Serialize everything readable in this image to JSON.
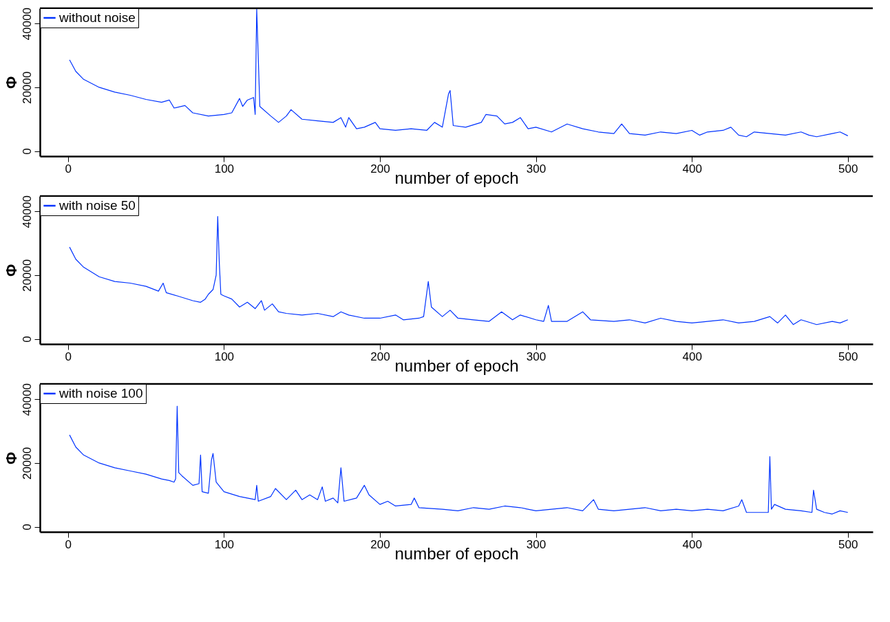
{
  "chart_data": [
    {
      "type": "line",
      "xlabel": "number of epoch",
      "ylabel": "Φ",
      "xlim": [
        -18,
        516
      ],
      "ylim": [
        -1600,
        44800
      ],
      "xticks": [
        0,
        100,
        200,
        300,
        400,
        500
      ],
      "yticks": [
        0,
        20000,
        40000
      ],
      "legend": "top left",
      "grid": false,
      "marker": "none",
      "line_style": "solid",
      "series": [
        {
          "name": "without noise",
          "color": "#0033ff",
          "x": [
            1,
            5,
            10,
            20,
            30,
            40,
            50,
            60,
            65,
            68,
            75,
            80,
            90,
            100,
            105,
            110,
            112,
            115,
            119,
            120,
            121,
            123,
            130,
            135,
            140,
            143,
            150,
            160,
            170,
            175,
            178,
            180,
            185,
            190,
            197,
            200,
            210,
            220,
            230,
            235,
            240,
            244,
            245,
            247,
            255,
            265,
            268,
            275,
            280,
            285,
            290,
            295,
            300,
            310,
            320,
            330,
            340,
            350,
            355,
            360,
            370,
            380,
            390,
            400,
            405,
            410,
            420,
            425,
            430,
            435,
            440,
            450,
            460,
            470,
            475,
            480,
            490,
            495,
            500
          ],
          "values": [
            28600,
            25000,
            22500,
            20000,
            18500,
            17500,
            16200,
            15300,
            16000,
            13500,
            14300,
            12000,
            11000,
            11500,
            12000,
            16500,
            14000,
            16000,
            16800,
            11500,
            44500,
            14000,
            11000,
            9000,
            11000,
            13000,
            10000,
            9500,
            9000,
            10500,
            7500,
            10500,
            7000,
            7500,
            9000,
            7000,
            6500,
            7000,
            6500,
            9000,
            7500,
            18000,
            19000,
            8000,
            7500,
            9000,
            11500,
            11000,
            8500,
            9000,
            10500,
            7000,
            7500,
            6000,
            8500,
            7000,
            6000,
            5500,
            8500,
            5500,
            5000,
            6000,
            5500,
            6500,
            5000,
            6000,
            6500,
            7500,
            5000,
            4500,
            6000,
            5500,
            5000,
            6000,
            5000,
            4500,
            5500,
            6000,
            4800
          ]
        }
      ]
    },
    {
      "type": "line",
      "xlabel": "number of epoch",
      "ylabel": "Φ",
      "xlim": [
        -18,
        516
      ],
      "ylim": [
        -1600,
        44800
      ],
      "xticks": [
        0,
        100,
        200,
        300,
        400,
        500
      ],
      "yticks": [
        0,
        20000,
        40000
      ],
      "legend": "top left",
      "grid": false,
      "marker": "none",
      "line_style": "solid",
      "series": [
        {
          "name": "with noise 50",
          "color": "#0033ff",
          "x": [
            1,
            5,
            10,
            20,
            30,
            40,
            50,
            58,
            61,
            63,
            70,
            80,
            85,
            88,
            90,
            93,
            95,
            96,
            97,
            98,
            100,
            105,
            110,
            115,
            120,
            124,
            126,
            131,
            135,
            140,
            150,
            160,
            170,
            175,
            180,
            190,
            200,
            210,
            215,
            225,
            228,
            231,
            233,
            240,
            245,
            250,
            260,
            270,
            278,
            285,
            290,
            300,
            305,
            308,
            310,
            320,
            330,
            335,
            350,
            360,
            370,
            380,
            390,
            400,
            410,
            420,
            430,
            440,
            450,
            455,
            460,
            465,
            470,
            480,
            490,
            495,
            500
          ],
          "values": [
            28800,
            25000,
            22500,
            19500,
            18000,
            17500,
            16500,
            15000,
            17500,
            14500,
            13500,
            12000,
            11500,
            12500,
            14000,
            15500,
            20000,
            38400,
            24000,
            14000,
            13500,
            12500,
            10000,
            11500,
            9500,
            12000,
            9000,
            11000,
            8500,
            8000,
            7500,
            8000,
            7000,
            8500,
            7500,
            6500,
            6500,
            7500,
            6000,
            6500,
            7000,
            18000,
            10000,
            7000,
            9000,
            6500,
            6000,
            5500,
            8500,
            6000,
            7500,
            6000,
            5500,
            10500,
            5500,
            5500,
            8500,
            6000,
            5500,
            6000,
            5000,
            6500,
            5500,
            5000,
            5500,
            6000,
            5000,
            5500,
            7000,
            5000,
            7500,
            4500,
            6000,
            4500,
            5500,
            5000,
            6000
          ]
        }
      ]
    },
    {
      "type": "line",
      "xlabel": "number of epoch",
      "ylabel": "Φ",
      "xlim": [
        -18,
        516
      ],
      "ylim": [
        -1600,
        44800
      ],
      "xticks": [
        0,
        100,
        200,
        300,
        400,
        500
      ],
      "yticks": [
        0,
        20000,
        40000
      ],
      "legend": "top left",
      "grid": false,
      "marker": "none",
      "line_style": "solid",
      "series": [
        {
          "name": "with noise 100",
          "color": "#0033ff",
          "x": [
            1,
            5,
            10,
            20,
            30,
            40,
            50,
            60,
            65,
            68,
            69,
            70,
            71,
            73,
            80,
            84,
            85,
            86,
            90,
            92,
            93,
            95,
            100,
            110,
            115,
            120,
            121,
            122,
            130,
            133,
            140,
            146,
            150,
            155,
            160,
            163,
            165,
            170,
            173,
            175,
            177,
            185,
            190,
            193,
            200,
            205,
            210,
            220,
            222,
            225,
            240,
            250,
            260,
            270,
            280,
            290,
            300,
            310,
            320,
            330,
            337,
            340,
            350,
            360,
            370,
            380,
            390,
            400,
            410,
            420,
            430,
            432,
            435,
            445,
            449,
            450,
            451,
            453,
            460,
            470,
            477,
            478,
            480,
            485,
            490,
            495,
            500
          ],
          "values": [
            28800,
            25000,
            22500,
            20000,
            18500,
            17500,
            16500,
            15000,
            14500,
            14000,
            15000,
            37800,
            17000,
            16000,
            13000,
            13500,
            22500,
            11000,
            10500,
            21000,
            23000,
            14000,
            11000,
            9500,
            9000,
            8500,
            13000,
            8000,
            9500,
            12000,
            8500,
            11500,
            8500,
            10000,
            8500,
            12500,
            8000,
            9000,
            7500,
            18500,
            8000,
            9000,
            13000,
            10000,
            7000,
            8000,
            6500,
            7000,
            9000,
            6000,
            5500,
            5000,
            6000,
            5500,
            6500,
            6000,
            5000,
            5500,
            6000,
            5000,
            8500,
            5500,
            5000,
            5500,
            6000,
            5000,
            5500,
            5000,
            5500,
            5000,
            6500,
            8500,
            4500,
            4500,
            4500,
            22000,
            5500,
            7000,
            5500,
            5000,
            4500,
            11500,
            5500,
            4500,
            4000,
            5000,
            4500
          ]
        }
      ]
    }
  ]
}
